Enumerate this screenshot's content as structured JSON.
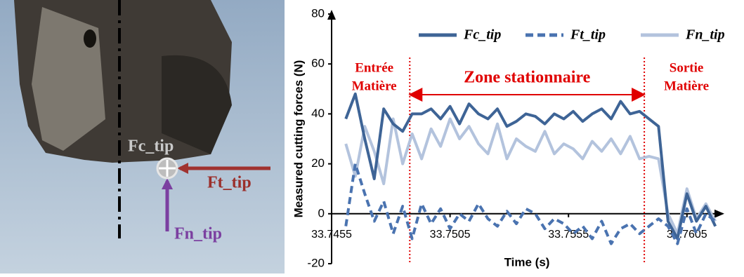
{
  "figure_labels": {
    "fc": "Fc_tip",
    "ft": "Ft_tip",
    "fn": "Fn_tip"
  },
  "chart_data": {
    "type": "line",
    "x_label": "Time (s)",
    "y_label": "Measured cutting forces (N)",
    "x": [
      33.7461,
      33.7465,
      33.7469,
      33.7473,
      33.7477,
      33.7481,
      33.7485,
      33.7489,
      33.7493,
      33.7497,
      33.7501,
      33.7505,
      33.7509,
      33.7513,
      33.7517,
      33.7521,
      33.7525,
      33.7529,
      33.7533,
      33.7537,
      33.7541,
      33.7545,
      33.7549,
      33.7553,
      33.7557,
      33.7561,
      33.7565,
      33.7569,
      33.7573,
      33.7577,
      33.7581,
      33.7585,
      33.7589,
      33.7593,
      33.7597,
      33.7601,
      33.7605,
      33.7609,
      33.7613,
      33.7617
    ],
    "series": [
      {
        "name": "Fc_tip",
        "color": "#3e6496",
        "dash": false,
        "values": [
          38,
          48,
          30,
          14,
          42,
          36,
          33,
          40,
          40,
          42,
          38,
          43,
          36,
          44,
          40,
          38,
          42,
          35,
          37,
          40,
          39,
          36,
          40,
          38,
          41,
          37,
          40,
          42,
          38,
          45,
          40,
          41,
          38,
          35,
          -3,
          -10,
          8,
          -3,
          3,
          -5
        ]
      },
      {
        "name": "Ft_tip",
        "color": "#4a73b0",
        "dash": true,
        "values": [
          -5,
          20,
          8,
          -3,
          5,
          -8,
          3,
          -10,
          4,
          -4,
          2,
          -6,
          0,
          -3,
          4,
          -2,
          -5,
          1,
          -4,
          2,
          0,
          -6,
          -2,
          -4,
          -8,
          -5,
          -10,
          -3,
          -12,
          -6,
          -4,
          -8,
          -5,
          -2,
          -5,
          -12,
          2,
          -8,
          0,
          -3
        ]
      },
      {
        "name": "Fn_tip",
        "color": "#b3c3dd",
        "dash": false,
        "values": [
          28,
          15,
          35,
          25,
          12,
          38,
          20,
          32,
          22,
          34,
          27,
          38,
          30,
          35,
          28,
          24,
          36,
          22,
          30,
          27,
          25,
          33,
          24,
          28,
          26,
          22,
          29,
          25,
          30,
          24,
          31,
          22,
          23,
          22,
          0,
          -8,
          10,
          -2,
          4,
          -3
        ]
      }
    ],
    "xlim": [
      33.7455,
      33.7619
    ],
    "xticks": [
      33.7455,
      33.7505,
      33.7555,
      33.7605
    ],
    "ylim": [
      -20,
      80
    ],
    "yticks": [
      -20,
      0,
      20,
      40,
      60,
      80
    ],
    "zone_lines": [
      33.7488,
      33.7587
    ],
    "annotations": {
      "entree": [
        "Entrée",
        "Matière"
      ],
      "zone": "Zone stationnaire",
      "sortie": [
        "Sortie",
        "Matière"
      ]
    }
  }
}
